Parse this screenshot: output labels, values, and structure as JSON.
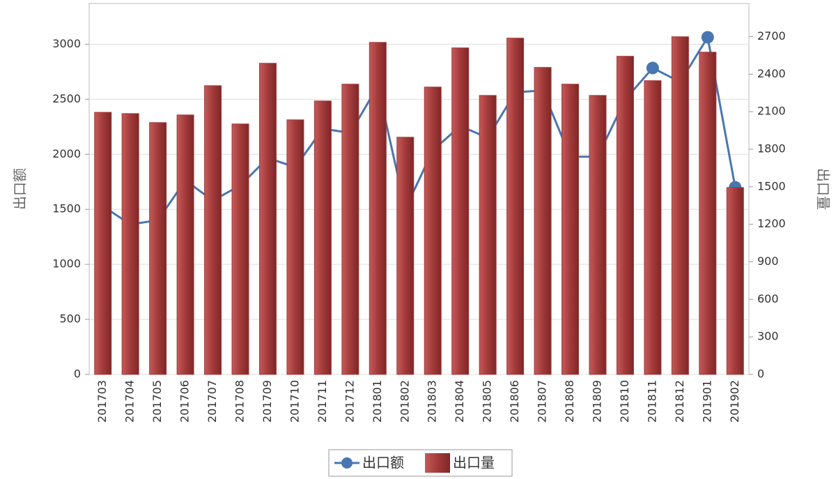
{
  "chart_data": {
    "type": "bar-line",
    "categories": [
      "201703",
      "201704",
      "201705",
      "201706",
      "201707",
      "201708",
      "201709",
      "201710",
      "201711",
      "201712",
      "201801",
      "201802",
      "201803",
      "201804",
      "201805",
      "201806",
      "201807",
      "201808",
      "201809",
      "201810",
      "201811",
      "201812",
      "201901",
      "201902"
    ],
    "series": [
      {
        "name": "出口额",
        "type": "line",
        "color": "#4a76b0",
        "axis": "y",
        "values": [
          1528,
          1363,
          1401,
          1763,
          1579,
          1718,
          1966,
          1883,
          2232,
          2194,
          2620,
          1503,
          2035,
          2257,
          2150,
          2562,
          2581,
          1978,
          1978,
          2498,
          2784,
          2657,
          3063,
          1700
        ]
      },
      {
        "name": "出口量",
        "type": "bar",
        "color": "#a33a3a",
        "axis": "y2",
        "values": [
          2095,
          2085,
          2013,
          2074,
          2308,
          2002,
          2487,
          2035,
          2186,
          2320,
          2654,
          1896,
          2297,
          2610,
          2230,
          2688,
          2454,
          2320,
          2230,
          2543,
          2348,
          2699,
          2576,
          1494
        ]
      }
    ],
    "y_label": "出口额",
    "y2_label": "出口量",
    "ylim": [
      0,
      3370
    ],
    "yticks": [
      0,
      500,
      1000,
      1500,
      2000,
      2500,
      3000
    ],
    "y2lim": [
      0,
      2965
    ],
    "y2ticks": [
      0,
      300,
      600,
      900,
      1200,
      1500,
      1800,
      2100,
      2400,
      2700
    ],
    "grid": true,
    "legend": "bottom"
  }
}
